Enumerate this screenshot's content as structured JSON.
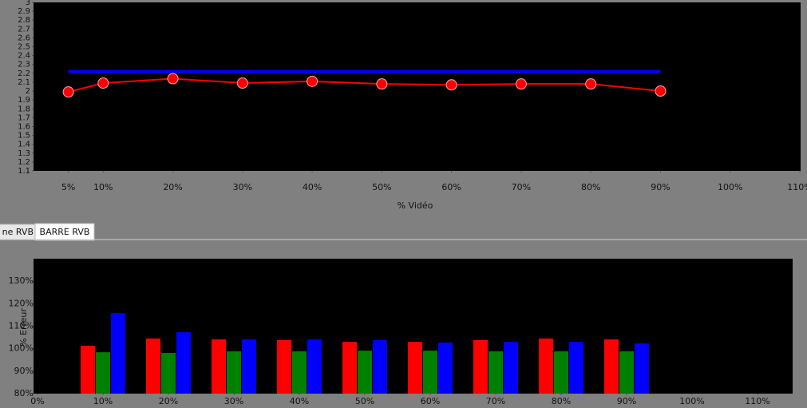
{
  "tabs": [
    "ne RVB",
    "BARRE RVB"
  ],
  "chart_data": [
    {
      "type": "line",
      "xlabel": "% Vidéo",
      "xlim": [
        0,
        110
      ],
      "ylim": [
        1.1,
        3
      ],
      "xticks": [
        {
          "value": 5,
          "label": "5%"
        },
        {
          "value": 10,
          "label": "10%"
        },
        {
          "value": 20,
          "label": "20%"
        },
        {
          "value": 30,
          "label": "30%"
        },
        {
          "value": 40,
          "label": "40%"
        },
        {
          "value": 50,
          "label": "50%"
        },
        {
          "value": 60,
          "label": "60%"
        },
        {
          "value": 70,
          "label": "70%"
        },
        {
          "value": 80,
          "label": "80%"
        },
        {
          "value": 90,
          "label": "90%"
        },
        {
          "value": 100,
          "label": "100%"
        },
        {
          "value": 110,
          "label": "110%"
        }
      ],
      "yticks": [
        1.1,
        1.2,
        1.3,
        1.4,
        1.5,
        1.6,
        1.7,
        1.8,
        1.9,
        2,
        2.1,
        2.2,
        2.3,
        2.4,
        2.5,
        2.6,
        2.7,
        2.8,
        2.9,
        3
      ],
      "series": [
        {
          "color": "#0000ff",
          "x": [
            5,
            90
          ],
          "values": [
            2.22,
            2.22
          ]
        },
        {
          "color": "#ff0000",
          "markers": true,
          "x": [
            5,
            10,
            20,
            30,
            40,
            50,
            60,
            70,
            80,
            90
          ],
          "values": [
            1.99,
            2.09,
            2.14,
            2.09,
            2.11,
            2.08,
            2.07,
            2.08,
            2.08,
            2.0
          ]
        }
      ]
    },
    {
      "type": "bar",
      "ylabel": "% Erreur",
      "xlim": [
        0,
        115
      ],
      "ylim": [
        80,
        140
      ],
      "xticks": [
        {
          "value": 0,
          "label": "0%"
        },
        {
          "value": 10,
          "label": "10%"
        },
        {
          "value": 20,
          "label": "20%"
        },
        {
          "value": 30,
          "label": "30%"
        },
        {
          "value": 40,
          "label": "40%"
        },
        {
          "value": 50,
          "label": "50%"
        },
        {
          "value": 60,
          "label": "60%"
        },
        {
          "value": 70,
          "label": "70%"
        },
        {
          "value": 80,
          "label": "80%"
        },
        {
          "value": 90,
          "label": "90%"
        },
        {
          "value": 100,
          "label": "100%"
        },
        {
          "value": 110,
          "label": "110%"
        }
      ],
      "yticks": [
        {
          "value": 80,
          "label": "80%"
        },
        {
          "value": 90,
          "label": "90%"
        },
        {
          "value": 100,
          "label": "100%"
        },
        {
          "value": 110,
          "label": "110%"
        },
        {
          "value": 120,
          "label": "120%"
        },
        {
          "value": 130,
          "label": "130%"
        }
      ],
      "x": [
        10,
        20,
        30,
        40,
        50,
        60,
        70,
        80,
        90
      ],
      "series": [
        {
          "color": "#ff0000",
          "values": [
            101.3,
            104.5,
            104.1,
            103.8,
            103.0,
            103.0,
            103.8,
            104.5,
            104.1
          ]
        },
        {
          "color": "#008000",
          "values": [
            98.4,
            98.1,
            98.8,
            98.8,
            99.1,
            99.1,
            98.8,
            98.8,
            98.8
          ]
        },
        {
          "color": "#0000ff",
          "values": [
            115.8,
            107.3,
            104.1,
            104.1,
            103.8,
            102.7,
            103.0,
            103.0,
            102.3
          ]
        }
      ]
    }
  ]
}
